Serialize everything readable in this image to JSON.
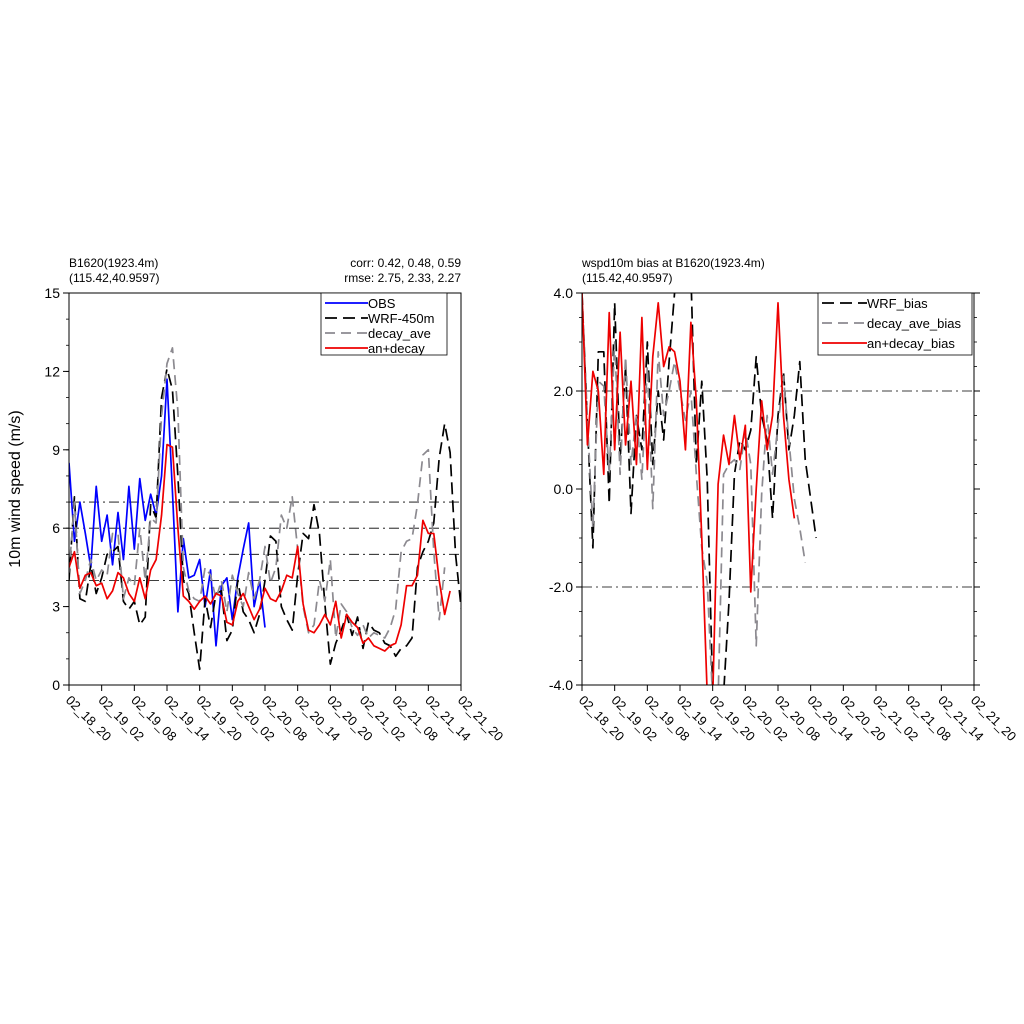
{
  "chart_data": [
    {
      "type": "line",
      "title_left": [
        "B1620(1923.4m)",
        "(115.42,40.9597)"
      ],
      "title_right": [
        "corr:  0.42, 0.48, 0.59",
        "rmse: 2.75, 2.33, 2.27"
      ],
      "ylabel": "10m wind speed (m/s)",
      "xlabel": "",
      "ylim": [
        0,
        15
      ],
      "xlim": [
        0,
        72
      ],
      "yticks": [
        0,
        3,
        6,
        9,
        12,
        15
      ],
      "ytick_labels": [
        "0",
        "3",
        "6",
        "9",
        "12",
        "15"
      ],
      "xticks": [
        0,
        6,
        12,
        18,
        24,
        30,
        36,
        42,
        48,
        54,
        60,
        66,
        72
      ],
      "xtick_labels": [
        "02_18_20",
        "02_19_02",
        "02_19_08",
        "02_19_14",
        "02_19_20",
        "02_20_02",
        "02_20_08",
        "02_20_14",
        "02_20_20",
        "02_21_02",
        "02_21_08",
        "02_21_14",
        "02_21_20"
      ],
      "reference_lines": [
        4,
        5,
        6,
        7
      ],
      "legend_position": "top-right",
      "series": [
        {
          "name": "OBS",
          "color": "#0000ff",
          "dash": "solid",
          "values": [
            8.5,
            5.5,
            7.0,
            5.8,
            4.5,
            7.6,
            5.5,
            6.5,
            4.6,
            6.6,
            4.8,
            7.6,
            5.2,
            7.9,
            6.3,
            7.3,
            6.5,
            8.0,
            11.7,
            7.4,
            2.8,
            5.6,
            4.1,
            4.2,
            4.8,
            3.0,
            4.4,
            1.5,
            3.8,
            4.1,
            2.5,
            4.1,
            5.2,
            6.2,
            3.0,
            4.0,
            2.2
          ]
        },
        {
          "name": "WRF-450m",
          "color": "#000000",
          "dash": "12,6",
          "values": [
            4.0,
            7.2,
            3.3,
            3.2,
            4.6,
            3.5,
            4.1,
            5.0,
            5.1,
            5.3,
            3.2,
            2.9,
            3.2,
            2.3,
            2.6,
            6.9,
            6.4,
            11.0,
            12.1,
            11.3,
            8.0,
            4.0,
            3.5,
            2.0,
            0.6,
            3.3,
            2.2,
            3.5,
            3.6,
            1.7,
            2.1,
            4.0,
            2.8,
            2.5,
            2.0,
            2.7,
            4.0,
            5.7,
            5.5,
            3.0,
            2.5,
            2.1,
            4.2,
            5.8,
            5.6,
            6.9,
            5.8,
            3.1,
            0.8,
            1.6,
            2.1,
            2.7,
            1.9,
            2.6,
            1.4,
            2.4,
            2.1,
            2.0,
            1.6,
            1.5,
            1.1,
            1.4,
            1.5,
            1.8,
            4.5,
            5.1,
            5.5,
            6.2,
            8.7,
            10.0,
            8.9,
            5.0,
            3.0,
            1.6
          ]
        },
        {
          "name": "decay_ave",
          "color": "#8c8a90",
          "dash": "10,6",
          "values": [
            4.3,
            7.0,
            3.5,
            4.0,
            4.8,
            4.0,
            4.4,
            4.2,
            5.8,
            5.8,
            3.3,
            4.1,
            3.8,
            6.0,
            4.0,
            6.4,
            6.2,
            10.3,
            12.3,
            12.9,
            10.5,
            4.5,
            3.6,
            3.3,
            3.2,
            4.5,
            4.2,
            3.3,
            4.0,
            2.8,
            4.2,
            3.5,
            3.0,
            4.3,
            3.3,
            4.0,
            5.3,
            3.9,
            4.5,
            6.5,
            6.0,
            7.2,
            5.2,
            3.0,
            2.0,
            2.3,
            4.0,
            3.2,
            4.8,
            1.8,
            3.1,
            2.8,
            2.2,
            1.9,
            2.3,
            1.8,
            2.0,
            1.9,
            1.8,
            2.2,
            2.9,
            5.1,
            5.5,
            5.6,
            6.9,
            8.8,
            9.0,
            5.1,
            2.5,
            4.5
          ]
        },
        {
          "name": "an+decay",
          "color": "#ee0000",
          "dash": "solid",
          "values": [
            4.5,
            5.1,
            3.7,
            4.2,
            4.3,
            3.8,
            3.9,
            3.3,
            3.6,
            4.3,
            4.1,
            3.5,
            3.2,
            4.1,
            3.3,
            4.4,
            4.8,
            6.5,
            9.2,
            9.1,
            6.0,
            3.4,
            3.2,
            2.9,
            3.2,
            3.4,
            3.1,
            3.5,
            3.4,
            2.4,
            2.3,
            3.2,
            3.5,
            3.0,
            2.5,
            2.9,
            3.7,
            3.3,
            3.2,
            3.6,
            4.2,
            4.1,
            5.3,
            3.1,
            2.1,
            2.0,
            2.3,
            2.7,
            2.3,
            3.2,
            1.8,
            2.7,
            2.4,
            2.2,
            1.6,
            1.8,
            1.5,
            1.4,
            1.3,
            1.5,
            1.6,
            2.3,
            3.8,
            3.8,
            4.2,
            6.3,
            5.8,
            5.8,
            4.0,
            2.7,
            3.6
          ]
        }
      ]
    },
    {
      "type": "line",
      "title_left": [
        "wspd10m bias at B1620(1923.4m)",
        "(115.42,40.9597)"
      ],
      "title_right": [],
      "ylabel": "",
      "xlabel": "",
      "ylim": [
        -4.0,
        4.0
      ],
      "xlim": [
        0,
        72
      ],
      "yticks": [
        -4.0,
        -2.0,
        0.0,
        2.0,
        4.0
      ],
      "ytick_labels": [
        "-4.0",
        "-2.0",
        "0.0",
        "2.0",
        "4.0"
      ],
      "xticks": [
        0,
        6,
        12,
        18,
        24,
        30,
        36,
        42,
        48,
        54,
        60,
        66,
        72
      ],
      "xtick_labels": [
        "02_18_20",
        "02_19_02",
        "02_19_08",
        "02_19_14",
        "02_19_20",
        "02_20_02",
        "02_20_08",
        "02_20_14",
        "02_20_20",
        "02_21_02",
        "02_21_08",
        "02_21_14",
        "02_21_20"
      ],
      "reference_lines": [
        -2.0,
        2.0
      ],
      "legend_position": "top-right",
      "series": [
        {
          "name": "WRF_bias",
          "color": "#000000",
          "dash": "12,6",
          "values": [
            4.0,
            1.3,
            -1.2,
            2.8,
            2.8,
            -0.3,
            3.8,
            0.6,
            2.5,
            -0.5,
            1.5,
            0.8,
            3.0,
            0.5,
            2.0,
            1.0,
            2.6,
            4.0,
            4.2,
            4.5,
            4.4,
            0.5,
            2.2,
            0.2,
            -4.1,
            -4.3,
            -4.2,
            -2.3,
            0.3,
            1.0,
            0.8,
            1.2,
            2.7,
            1.5,
            1.0,
            -0.6,
            1.5,
            2.4,
            0.8,
            1.5,
            2.6,
            0.6,
            -0.2,
            -1.0
          ]
        },
        {
          "name": "decay_ave_bias",
          "color": "#8c8a90",
          "dash": "10,6",
          "values": [
            4.0,
            1.4,
            -0.8,
            2.2,
            2.1,
            0.3,
            3.0,
            0.3,
            2.7,
            0.5,
            1.5,
            0.2,
            2.5,
            -0.4,
            2.8,
            1.5,
            2.0,
            2.6,
            2.0,
            1.4,
            2.0,
            0.3,
            -1.2,
            -1.9,
            -4.3,
            -4.3,
            0.3,
            0.5,
            0.6,
            0.4,
            1.2,
            0.5,
            -3.2,
            -0.1,
            1.5,
            0.3,
            1.3,
            2.3,
            1.0,
            -0.2,
            -0.8,
            -1.5
          ]
        },
        {
          "name": "an+decay_bias",
          "color": "#ee0000",
          "dash": "solid",
          "values": [
            4.0,
            0.9,
            2.4,
            2.0,
            0.3,
            3.6,
            0.8,
            3.2,
            0.9,
            2.2,
            0.5,
            3.5,
            0.4,
            2.7,
            3.8,
            2.5,
            2.9,
            2.8,
            2.2,
            0.8,
            3.4,
            1.8,
            -1.0,
            -4.2,
            -4.3,
            0.1,
            1.1,
            0.5,
            1.5,
            0.6,
            1.3,
            -2.1,
            0.0,
            1.8,
            0.8,
            1.5,
            3.8,
            1.5,
            0.2,
            -0.6
          ]
        }
      ]
    }
  ]
}
